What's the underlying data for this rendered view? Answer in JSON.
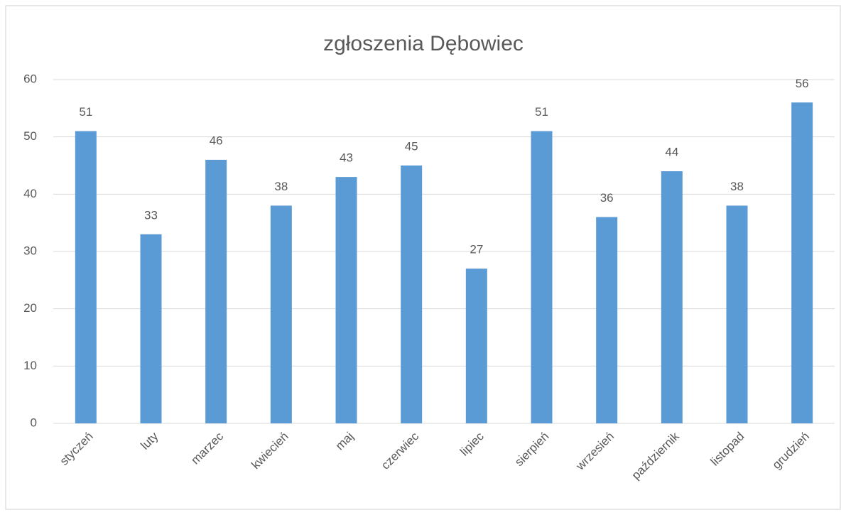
{
  "chart_data": {
    "type": "bar",
    "title": "zgłoszenia Dębowiec",
    "categories": [
      "styczeń",
      "luty",
      "marzec",
      "kwiecień",
      "maj",
      "czerwiec",
      "lipiec",
      "sierpień",
      "wrzesień",
      "październik",
      "listopad",
      "grudzień"
    ],
    "values": [
      51,
      33,
      46,
      38,
      43,
      45,
      27,
      51,
      36,
      44,
      38,
      56
    ],
    "color": "#5b9bd5",
    "ylim": [
      0,
      60
    ],
    "yticks": [
      0,
      10,
      20,
      30,
      40,
      50,
      60
    ],
    "grid": true
  }
}
